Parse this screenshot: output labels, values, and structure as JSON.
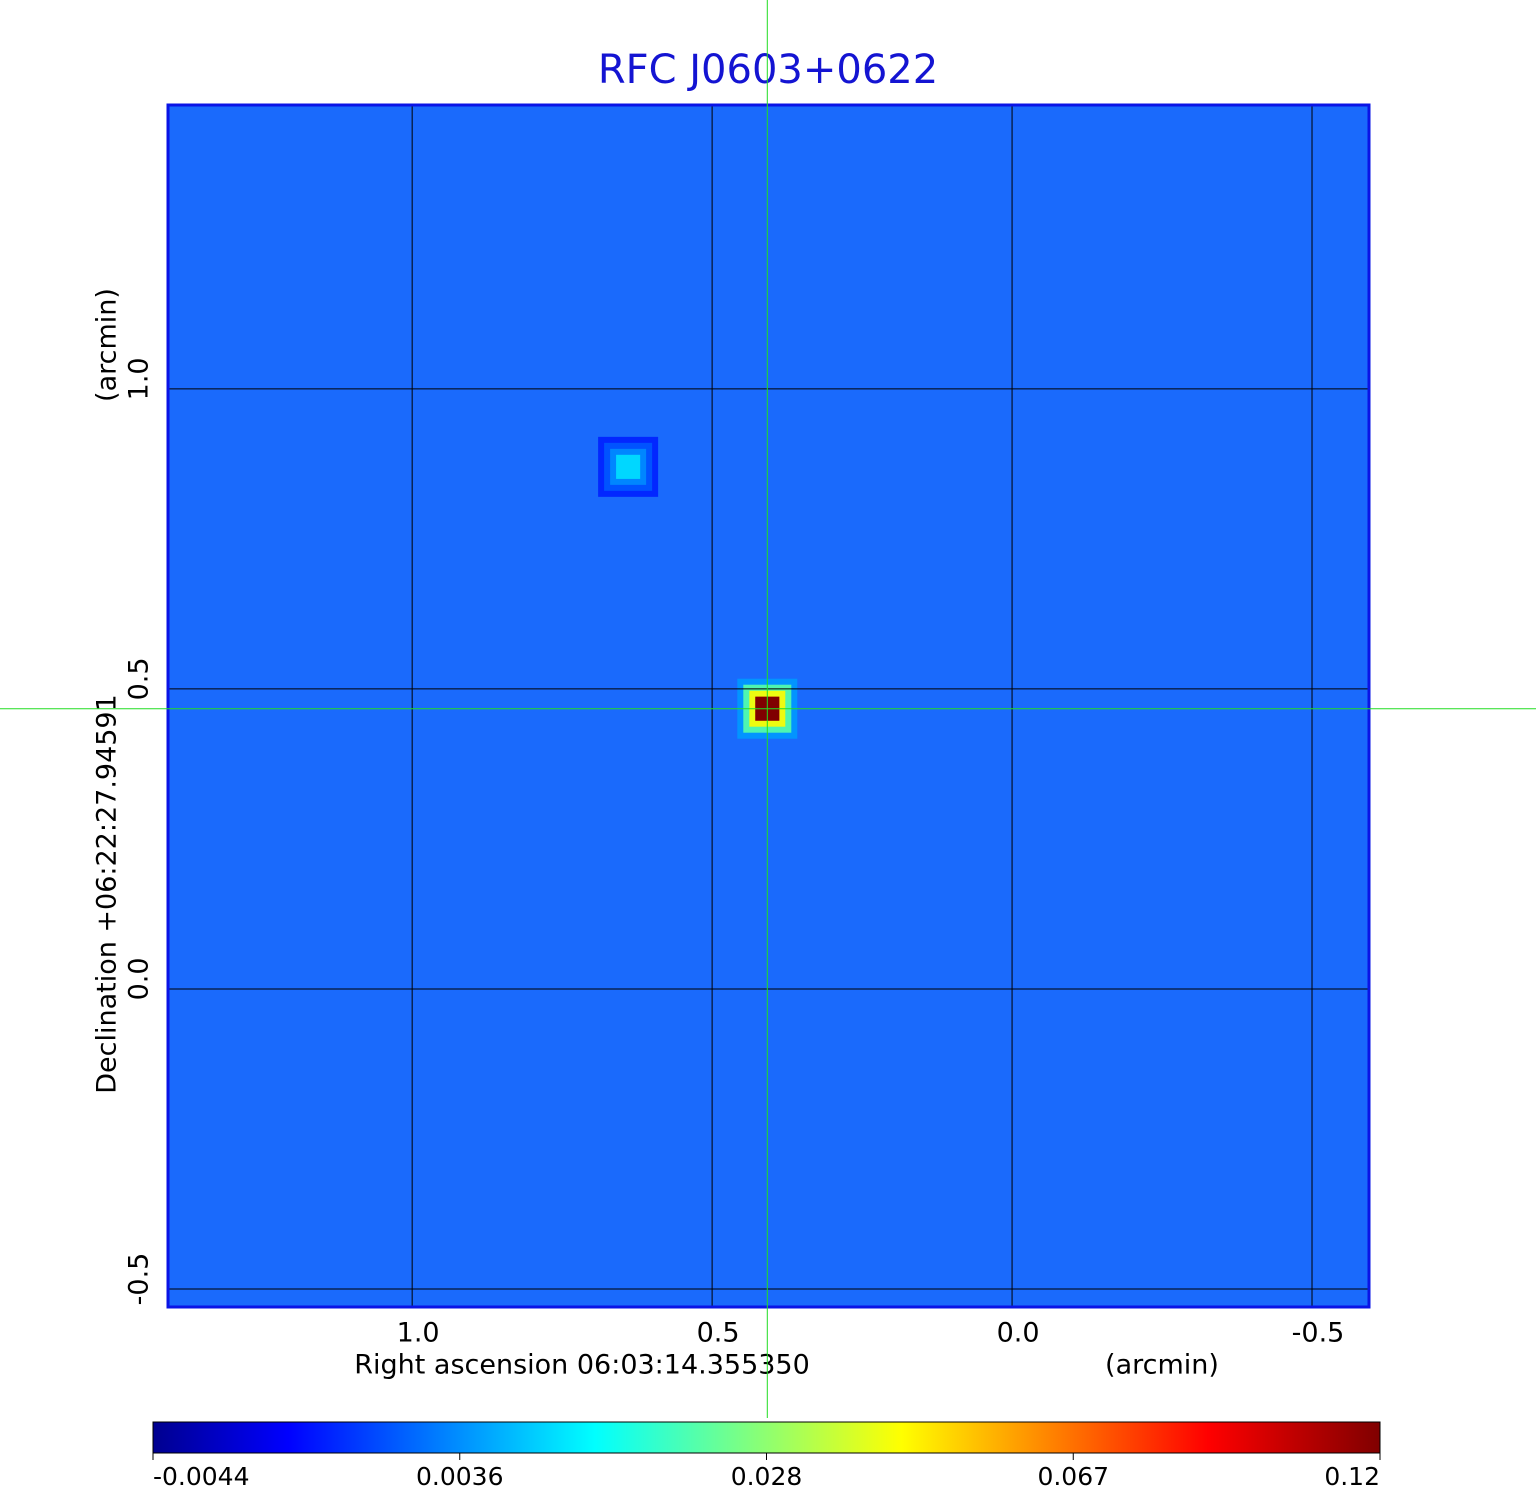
{
  "chart_data": {
    "type": "image",
    "title": "RFC J0603+0622",
    "xlabel": "Right ascension  06:03:14.355350",
    "xunit": "(arcmin)",
    "ylabel": "Declination  +06:22:27.94591",
    "yunit": "(arcmin)",
    "xlim": [
      1.407,
      -0.595
    ],
    "ylim": [
      -0.53,
      1.473
    ],
    "xticks": [
      {
        "value": 1,
        "label": "1.0"
      },
      0.5,
      {
        "value": 0,
        "label": "0.0"
      },
      -0.5
    ],
    "yticks": [
      {
        "value": 1,
        "label": "1.0"
      },
      0.5,
      {
        "value": 0,
        "label": "0.0"
      },
      -0.5
    ],
    "grid": true,
    "sources": [
      {
        "x": 0.408,
        "y": 0.467,
        "peak": 0.12
      },
      {
        "x": 0.64,
        "y": 0.87,
        "peak": 0.012
      }
    ],
    "crosshair": {
      "x": 0.408,
      "y": 0.467
    },
    "colorbar": {
      "ticks": [
        -0.0044,
        0.0036,
        0.028,
        0.067,
        0.12
      ]
    }
  }
}
